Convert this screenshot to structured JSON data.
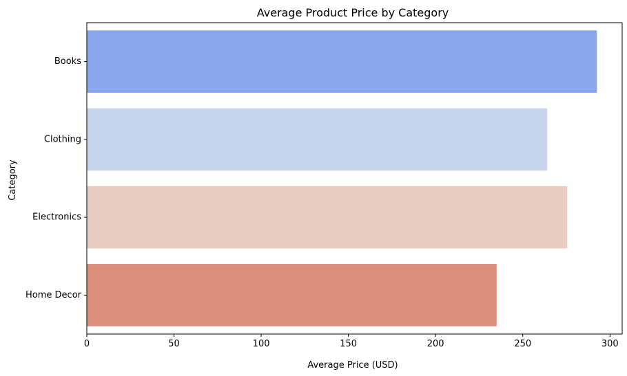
{
  "chart_data": {
    "type": "bar",
    "orientation": "horizontal",
    "title": "Average Product Price by Category",
    "xlabel": "Average Price (USD)",
    "ylabel": "Category",
    "categories": [
      "Books",
      "Clothing",
      "Electronics",
      "Home Decor"
    ],
    "values": [
      292.5,
      264,
      275.5,
      235
    ],
    "colors": [
      "#88a6eb",
      "#c7d5f0",
      "#e9cdc0",
      "#db8e79"
    ],
    "xlim": [
      0,
      307
    ],
    "xticks": [
      0,
      50,
      100,
      150,
      200,
      250,
      300
    ],
    "grid": false,
    "legend": "none"
  }
}
